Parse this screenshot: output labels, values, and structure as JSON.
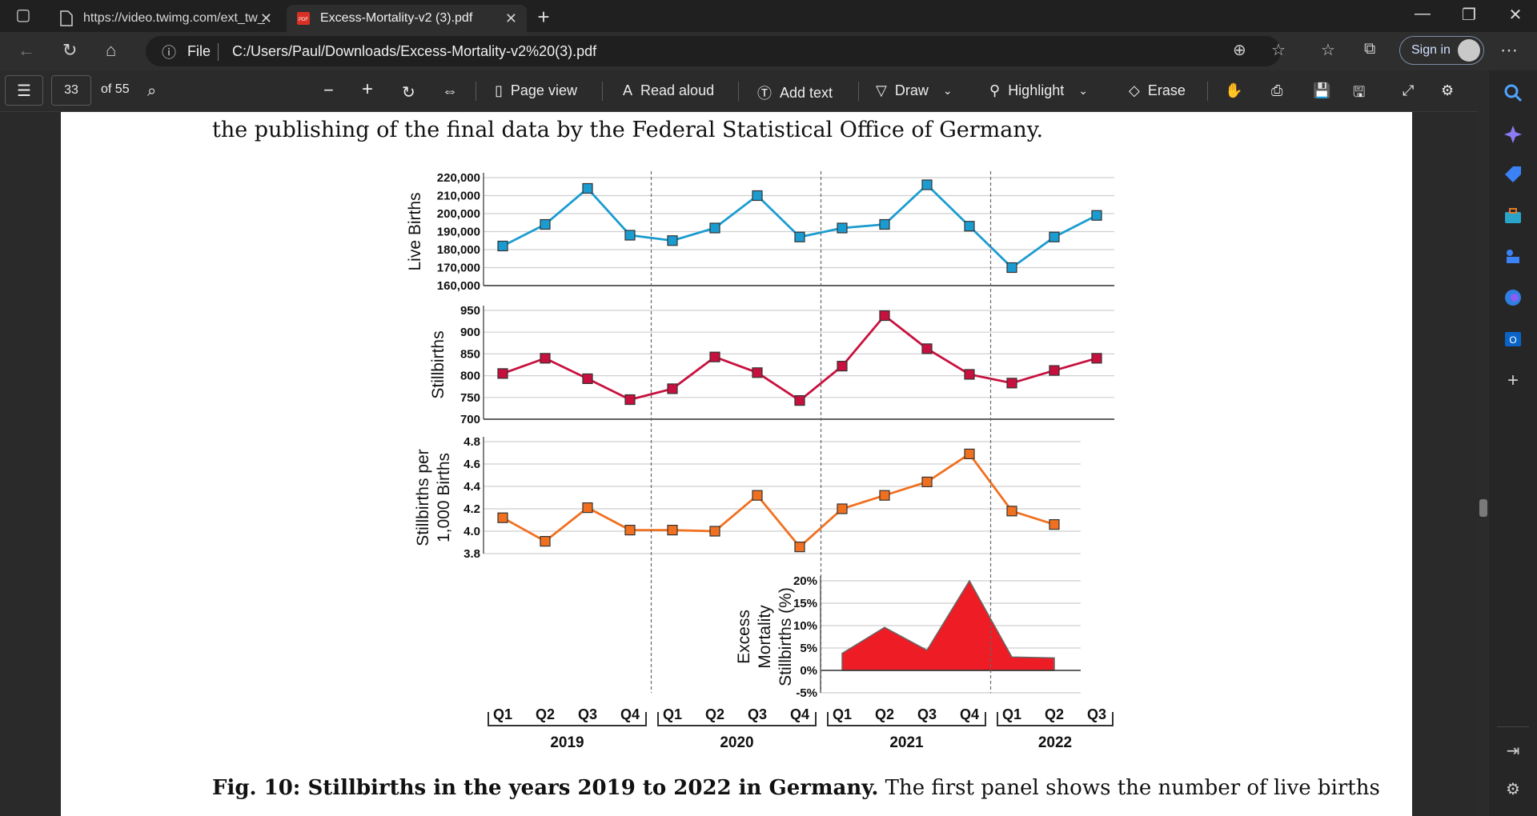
{
  "browser": {
    "tabs": [
      {
        "title": "https://video.twimg.com/ext_tw_"
      },
      {
        "title": "Excess-Mortality-v2 (3).pdf"
      }
    ],
    "file_label": "File",
    "url": "C:/Users/Paul/Downloads/Excess-Mortality-v2%20(3).pdf",
    "signin_label": "Sign in"
  },
  "pdf_toolbar": {
    "page_number": "33",
    "page_total": "of 55",
    "page_view": "Page view",
    "read_aloud": "Read aloud",
    "add_text": "Add text",
    "draw": "Draw",
    "highlight": "Highlight",
    "erase": "Erase"
  },
  "document": {
    "top_line": "the publishing of the final data by the Federal Statistical Office of Germany.",
    "caption_bold": "Fig. 10: Stillbirths in the years 2019 to 2022 in Germany.",
    "caption_rest": " The first panel shows the number of live births"
  },
  "chart_data": [
    {
      "type": "line",
      "ylabel": "Live Births",
      "categories": [
        "2019 Q1",
        "2019 Q2",
        "2019 Q3",
        "2019 Q4",
        "2020 Q1",
        "2020 Q2",
        "2020 Q3",
        "2020 Q4",
        "2021 Q1",
        "2021 Q2",
        "2021 Q3",
        "2021 Q4",
        "2022 Q1",
        "2022 Q2",
        "2022 Q3"
      ],
      "values": [
        182000,
        194000,
        214000,
        188000,
        185000,
        192000,
        210000,
        187000,
        192000,
        194000,
        216000,
        193000,
        170000,
        187000,
        199000
      ],
      "yticks": [
        "220,000",
        "210,000",
        "200,000",
        "190,000",
        "180,000",
        "170,000",
        "160,000"
      ],
      "ylim": [
        160000,
        220000
      ],
      "color": "#1b9cd0"
    },
    {
      "type": "line",
      "ylabel": "Stillbirths",
      "categories": [
        "2019 Q1",
        "2019 Q2",
        "2019 Q3",
        "2019 Q4",
        "2020 Q1",
        "2020 Q2",
        "2020 Q3",
        "2020 Q4",
        "2021 Q1",
        "2021 Q2",
        "2021 Q3",
        "2021 Q4",
        "2022 Q1",
        "2022 Q2",
        "2022 Q3"
      ],
      "values": [
        805,
        840,
        793,
        745,
        770,
        843,
        807,
        743,
        822,
        938,
        862,
        803,
        783,
        812,
        840
      ],
      "yticks": [
        "950",
        "900",
        "850",
        "800",
        "750",
        "700"
      ],
      "ylim": [
        700,
        950
      ],
      "color": "#c8103e"
    },
    {
      "type": "line",
      "ylabel": "Stillbirths per 1,000 Births",
      "categories": [
        "2019 Q1",
        "2019 Q2",
        "2019 Q3",
        "2019 Q4",
        "2020 Q1",
        "2020 Q2",
        "2020 Q3",
        "2020 Q4",
        "2021 Q1",
        "2021 Q2",
        "2021 Q3",
        "2021 Q4",
        "2022 Q1",
        "2022 Q2"
      ],
      "values": [
        4.12,
        3.91,
        4.21,
        4.01,
        4.01,
        4.0,
        4.32,
        3.86,
        4.2,
        4.32,
        4.44,
        4.69,
        4.18,
        4.06
      ],
      "yticks": [
        "4.8",
        "4.6",
        "4.4",
        "4.2",
        "4.0",
        "3.8"
      ],
      "ylim": [
        3.8,
        4.8
      ],
      "color": "#f07020"
    },
    {
      "type": "area",
      "ylabel": "Excess Mortality Stillbirths (%)",
      "categories": [
        "2021 Q1",
        "2021 Q2",
        "2021 Q3",
        "2021 Q4",
        "2022 Q1",
        "2022 Q2"
      ],
      "values": [
        3.8,
        9.6,
        4.5,
        20.0,
        3.0,
        2.8
      ],
      "yticks": [
        "20%",
        "15%",
        "10%",
        "5%",
        "0%",
        "-5%"
      ],
      "ylim": [
        -5,
        20
      ],
      "color": "#ee1c24"
    }
  ],
  "x_axis": {
    "quarters": [
      "Q1",
      "Q2",
      "Q3",
      "Q4",
      "Q1",
      "Q2",
      "Q3",
      "Q4",
      "Q1",
      "Q2",
      "Q3",
      "Q4",
      "Q1",
      "Q2",
      "Q3"
    ],
    "years": [
      "2019",
      "2020",
      "2021",
      "2022"
    ]
  },
  "icons": {
    "sidebar": [
      "search-icon",
      "copilot-icon",
      "tag-icon",
      "briefcase-icon",
      "chess-icon",
      "edge-icon",
      "outlook-icon",
      "plus-icon",
      "sidebar-collapse-icon",
      "settings-icon"
    ]
  }
}
